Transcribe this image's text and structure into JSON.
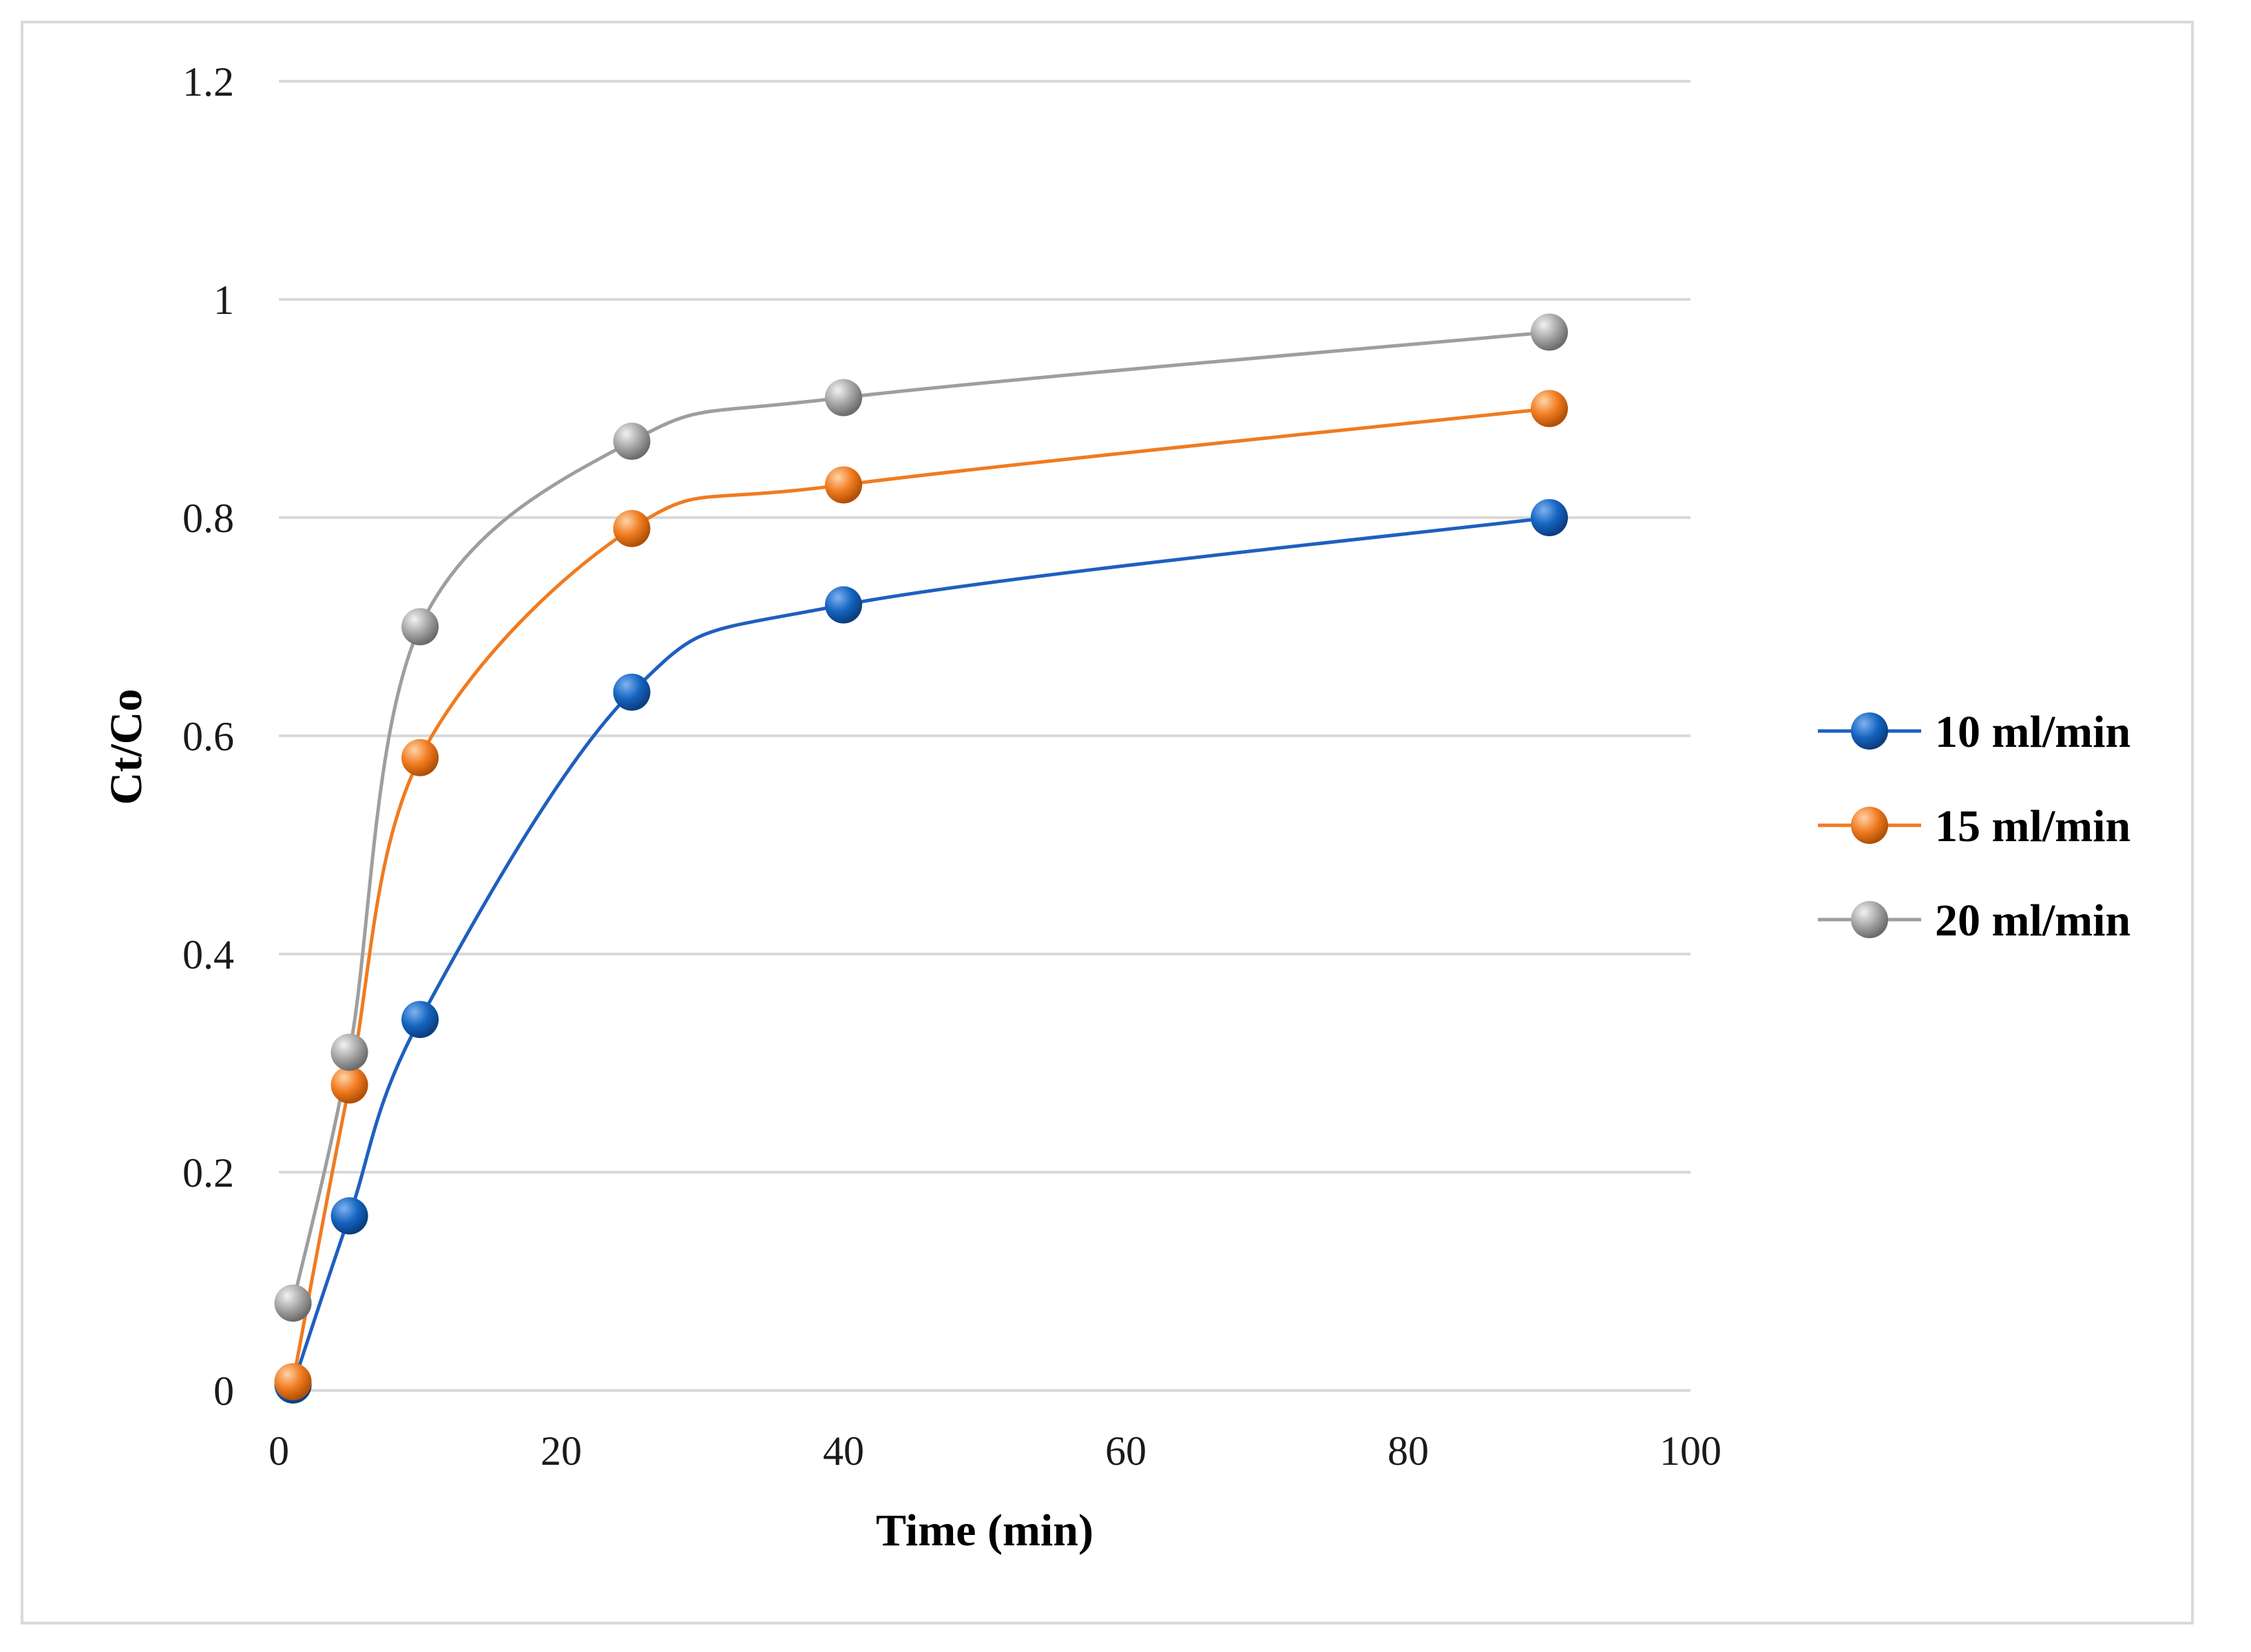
{
  "chart_data": {
    "type": "line",
    "title": "",
    "xlabel": "Time (min)",
    "ylabel": "Ct/Co",
    "xlim": [
      0,
      100
    ],
    "ylim": [
      0,
      1.2
    ],
    "xticks": [
      0,
      20,
      40,
      60,
      80,
      100
    ],
    "yticks": [
      0,
      0.2,
      0.4,
      0.6,
      0.8,
      1,
      1.2
    ],
    "xtick_labels": [
      "0",
      "20",
      "40",
      "60",
      "80",
      "100"
    ],
    "ytick_labels": [
      "0",
      "0.2",
      "0.4",
      "0.6",
      "0.8",
      "1",
      "1.2"
    ],
    "grid": "horizontal",
    "legend_position": "right",
    "series": [
      {
        "name": "10 ml/min",
        "color": "#1f5fbf",
        "marker_color": "#1565c0",
        "x": [
          1,
          5,
          10,
          25,
          40,
          90
        ],
        "y": [
          0.005,
          0.16,
          0.34,
          0.64,
          0.72,
          0.8
        ]
      },
      {
        "name": "15 ml/min",
        "color": "#f07b20",
        "marker_color": "#f07b20",
        "x": [
          1,
          5,
          10,
          25,
          40,
          90
        ],
        "y": [
          0.008,
          0.28,
          0.58,
          0.79,
          0.83,
          0.9
        ]
      },
      {
        "name": "20 ml/min",
        "color": "#9e9e9e",
        "marker_color": "#a6a6a6",
        "x": [
          1,
          5,
          10,
          25,
          40,
          90
        ],
        "y": [
          0.08,
          0.31,
          0.7,
          0.87,
          0.91,
          0.97
        ]
      }
    ]
  }
}
